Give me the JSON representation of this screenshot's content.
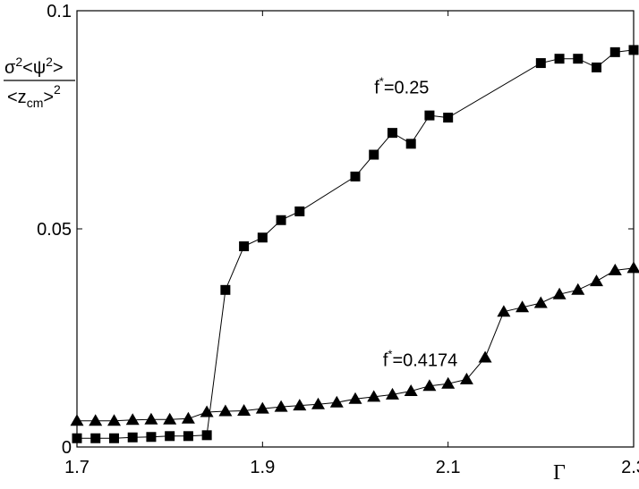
{
  "chart_data": {
    "type": "line",
    "title": "",
    "xlabel": "Γ",
    "ylabel": {
      "numerator": {
        "sigma": "σ",
        "sigma_exp": "2",
        "open": "<ψ",
        "psi_exp": "2",
        "close": ">"
      },
      "denominator": {
        "open": "<z",
        "sub": "cm",
        "close": ">",
        "exp": "2"
      }
    },
    "xlim": [
      1.7,
      2.3
    ],
    "ylim": [
      0,
      0.1
    ],
    "xticks": [
      1.7,
      1.9,
      2.1,
      2.3
    ],
    "xtick_labels": [
      "1.7",
      "1.9",
      "2.1",
      "2.3"
    ],
    "yticks": [
      0,
      0.05,
      0.1
    ],
    "ytick_labels": [
      "0",
      "0.05",
      "0.1"
    ],
    "grid": false,
    "series": [
      {
        "marker": "square",
        "annotation": {
          "prefix": "f",
          "sup": "*",
          "suffix": "=0.25"
        },
        "x": [
          1.7,
          1.72,
          1.74,
          1.76,
          1.78,
          1.8,
          1.82,
          1.84,
          1.86,
          1.88,
          1.9,
          1.92,
          1.94,
          2.0,
          2.02,
          2.04,
          2.06,
          2.08,
          2.1,
          2.2,
          2.22,
          2.24,
          2.26,
          2.28,
          2.3
        ],
        "y": [
          0.002,
          0.002,
          0.002,
          0.0022,
          0.0023,
          0.0025,
          0.0025,
          0.0027,
          0.036,
          0.046,
          0.048,
          0.052,
          0.054,
          0.062,
          0.067,
          0.072,
          0.0695,
          0.076,
          0.0755,
          0.088,
          0.089,
          0.089,
          0.087,
          0.0905,
          0.091
        ]
      },
      {
        "marker": "triangle",
        "annotation": {
          "prefix": "f",
          "sup": "*",
          "suffix": "=0.4174"
        },
        "x": [
          1.7,
          1.72,
          1.74,
          1.76,
          1.78,
          1.8,
          1.82,
          1.84,
          1.86,
          1.88,
          1.9,
          1.92,
          1.94,
          1.96,
          1.98,
          2.0,
          2.02,
          2.04,
          2.06,
          2.08,
          2.1,
          2.12,
          2.14,
          2.16,
          2.18,
          2.2,
          2.22,
          2.24,
          2.26,
          2.28,
          2.3
        ],
        "y": [
          0.006,
          0.006,
          0.006,
          0.0062,
          0.0063,
          0.0063,
          0.0065,
          0.008,
          0.0082,
          0.0083,
          0.0088,
          0.0092,
          0.0095,
          0.0098,
          0.0102,
          0.011,
          0.0115,
          0.012,
          0.0128,
          0.014,
          0.0145,
          0.0155,
          0.0205,
          0.031,
          0.032,
          0.033,
          0.035,
          0.036,
          0.038,
          0.0405,
          0.041
        ]
      }
    ],
    "annotations_at": [
      {
        "series": 0,
        "x": 2.05,
        "y": 0.081
      },
      {
        "series": 1,
        "x": 2.07,
        "y": 0.0185
      }
    ]
  }
}
